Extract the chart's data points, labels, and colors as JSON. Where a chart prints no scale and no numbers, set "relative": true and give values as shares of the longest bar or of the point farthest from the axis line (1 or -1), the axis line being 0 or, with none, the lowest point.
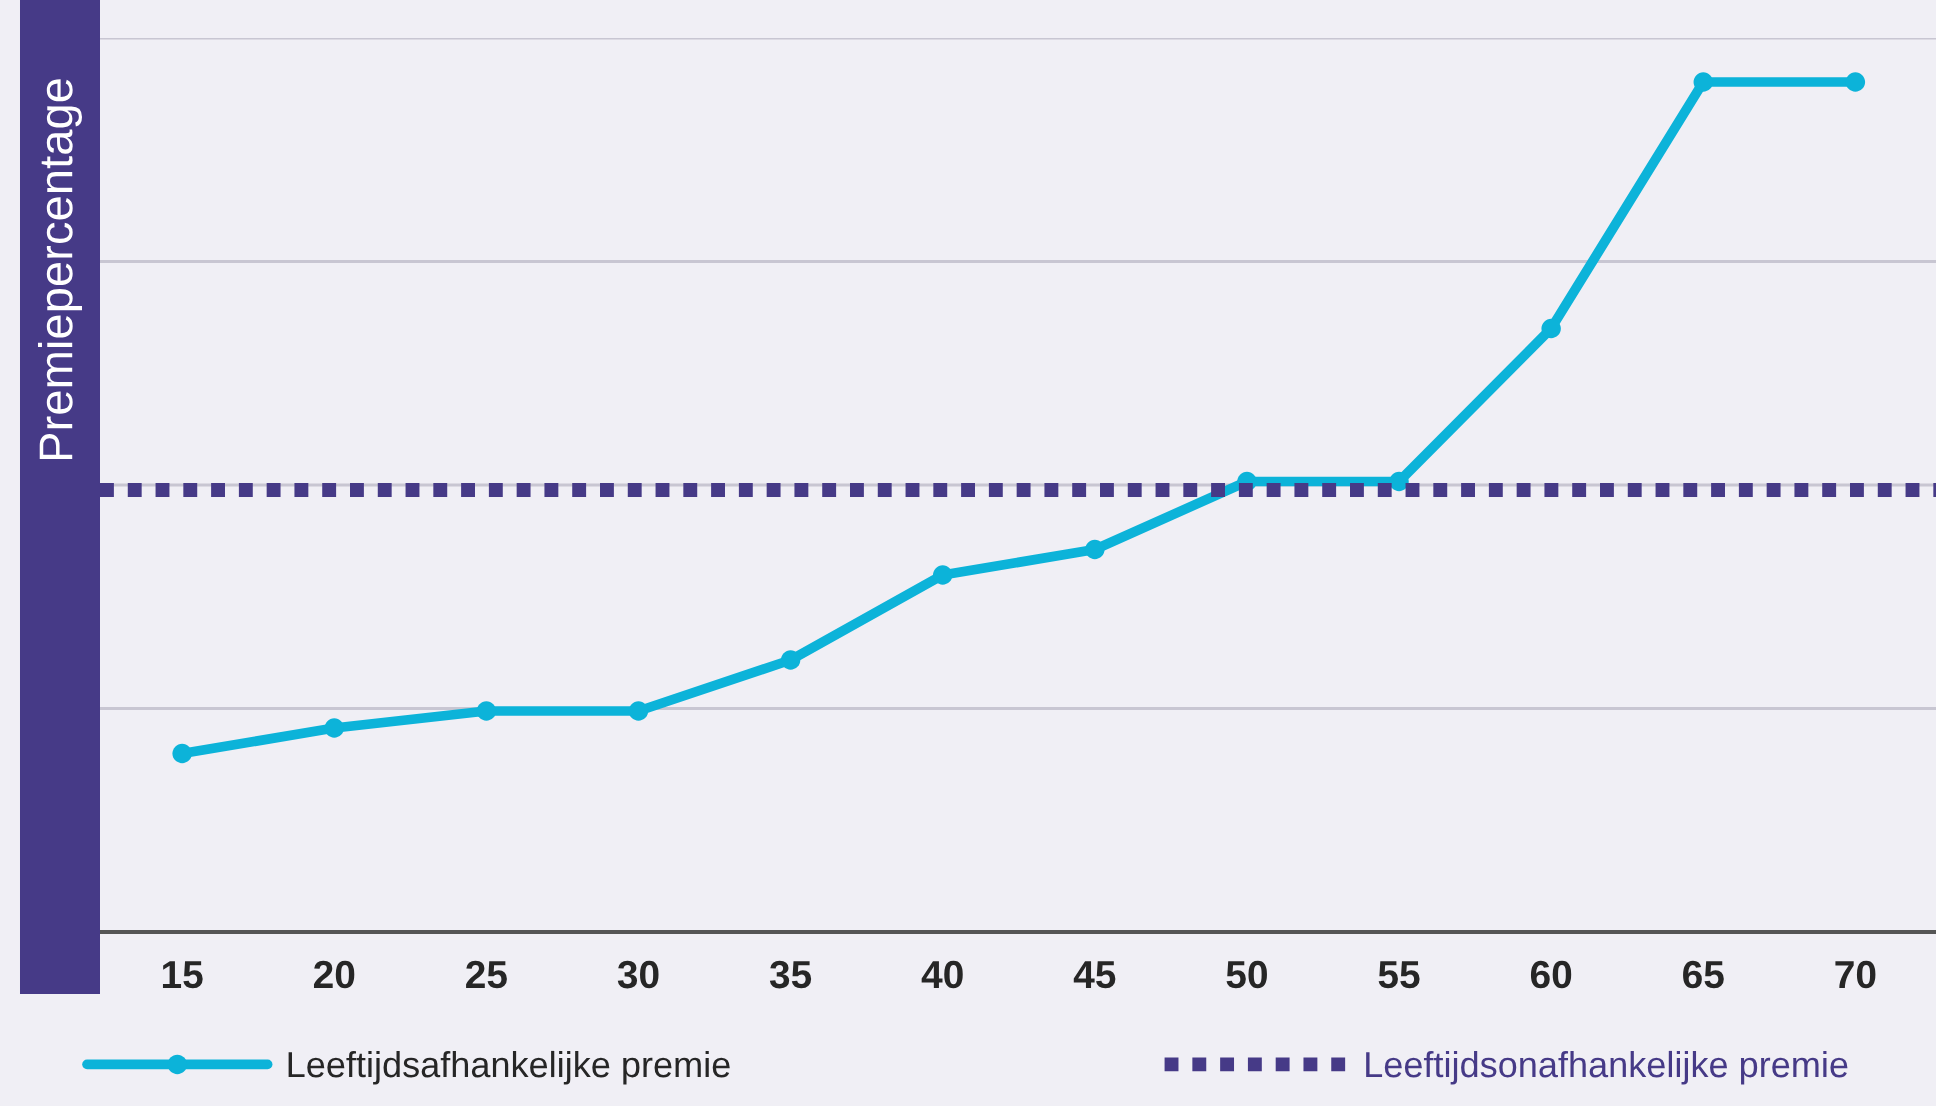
{
  "chart_data": {
    "type": "line",
    "relative": true,
    "ylabel": "Premiepercentage",
    "categories": [
      "15",
      "20",
      "25",
      "30",
      "35",
      "40",
      "45",
      "50",
      "55",
      "60",
      "65",
      "70"
    ],
    "series": [
      {
        "name": "Leeftijdsafhankelijke premie",
        "color": "#0cb3d9",
        "values": [
          0.21,
          0.24,
          0.26,
          0.26,
          0.32,
          0.42,
          0.45,
          0.53,
          0.53,
          0.71,
          1,
          1
        ]
      }
    ],
    "ref_lines": [
      {
        "axis": "y",
        "value": 0.52,
        "label": "Leeftijdsonafhankelijke premie",
        "color": "#463a87",
        "line_style": "dotted"
      }
    ],
    "marker": "circle",
    "line_style": "solid",
    "grid": "y",
    "legend": "bottom"
  }
}
